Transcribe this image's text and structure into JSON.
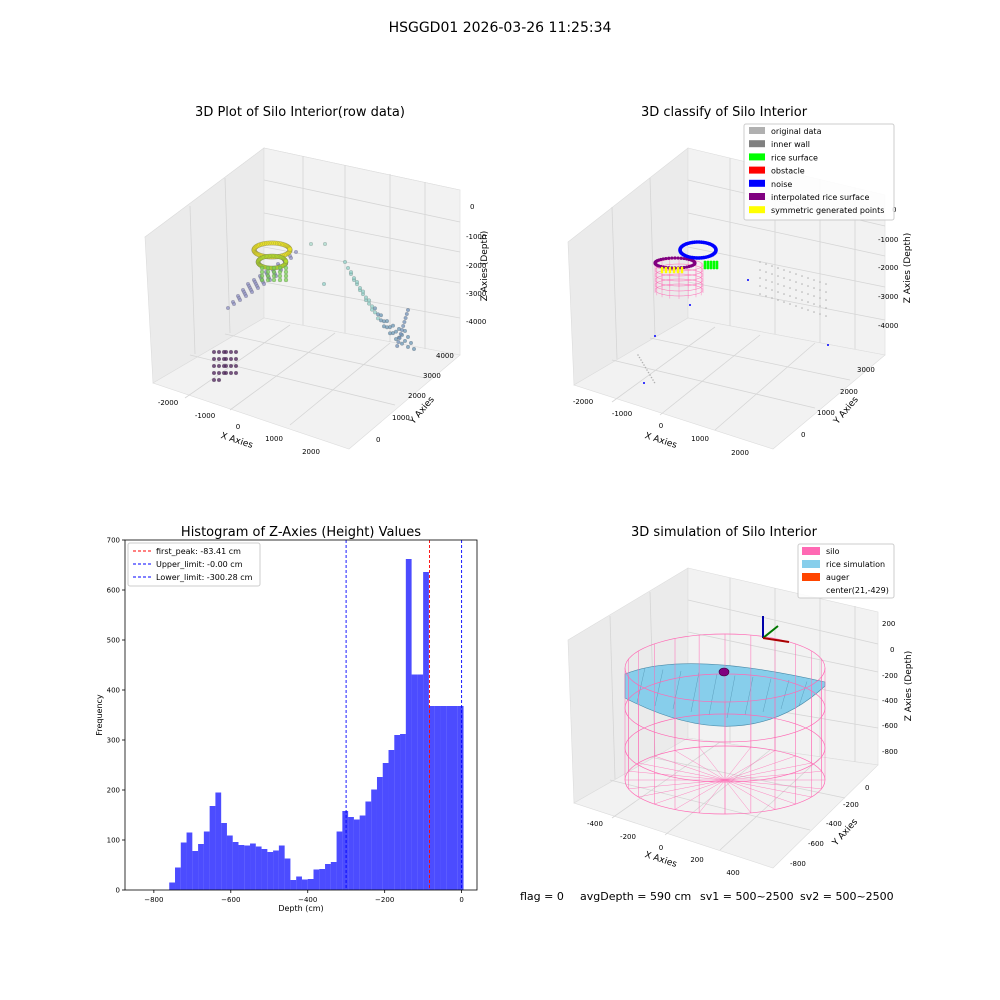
{
  "figure": {
    "suptitle": "HSGGD01 2026-03-26 11:25:34",
    "footer": {
      "flag": "flag = 0",
      "avg_depth": "avgDepth = 590 cm",
      "sv1": "sv1 = 500~2500",
      "sv2": "sv2 = 500~2500"
    }
  },
  "chart_data": [
    {
      "type": "scatter",
      "title": "3D Plot of Silo Interior(row data)",
      "xlabel": "X Axies",
      "ylabel": "Y Axies",
      "zlabel": "Z Axies (Depth)",
      "x_ticks": [
        "-2000",
        "-1000",
        "0",
        "1000",
        "2000"
      ],
      "y_ticks": [
        "0",
        "1000",
        "2000",
        "3000",
        "4000"
      ],
      "z_ticks": [
        "0",
        "-1000",
        "-2000",
        "-3000",
        "-4000"
      ],
      "colormap": "viridis"
    },
    {
      "type": "scatter",
      "title": "3D classify of Silo Interior",
      "xlabel": "X Axies",
      "ylabel": "Y Axies",
      "zlabel": "Z Axies (Depth)",
      "x_ticks": [
        "-2000",
        "-1000",
        "0",
        "1000",
        "2000"
      ],
      "y_ticks": [
        "0",
        "1000",
        "2000",
        "3000"
      ],
      "z_ticks": [
        "0",
        "-1000",
        "-2000",
        "-3000",
        "-4000"
      ],
      "legend_position": "top-right",
      "legend": [
        {
          "label": "original data",
          "color": "#b0b0b0"
        },
        {
          "label": "inner wall",
          "color": "#808080"
        },
        {
          "label": "rice surface",
          "color": "#00ff00"
        },
        {
          "label": "obstacle",
          "color": "#ff0000"
        },
        {
          "label": "noise",
          "color": "#0000ff"
        },
        {
          "label": "interpolated rice surface",
          "color": "#800080"
        },
        {
          "label": "symmetric generated points",
          "color": "#ffff00"
        }
      ]
    },
    {
      "type": "bar",
      "title": "Histogram of Z-Axies (Height) Values",
      "xlabel": "Depth (cm)",
      "ylabel": "Frequency",
      "xlim": [
        -875,
        40
      ],
      "ylim": [
        0,
        700
      ],
      "x_ticks": [
        -800,
        -600,
        -400,
        -200,
        0
      ],
      "y_ticks": [
        0,
        100,
        200,
        300,
        400,
        500,
        600,
        700
      ],
      "bar_color": "#0000ff",
      "bins_left": [
        -760,
        -745,
        -730,
        -715,
        -700,
        -685,
        -670,
        -655,
        -640,
        -625,
        -610,
        -595,
        -580,
        -565,
        -550,
        -535,
        -520,
        -505,
        -490,
        -475,
        -460,
        -445,
        -430,
        -415,
        -400,
        -385,
        -370,
        -355,
        -340,
        -325,
        -310,
        -295,
        -280,
        -265,
        -250,
        -235,
        -220,
        -205,
        -190,
        -175,
        -160,
        -145,
        -130,
        -115,
        -100,
        -85,
        -70,
        -55,
        -40,
        -25,
        -10
      ],
      "bin_width": 15,
      "values": [
        15,
        45,
        95,
        115,
        78,
        92,
        117,
        168,
        195,
        134,
        109,
        96,
        90,
        89,
        93,
        87,
        82,
        76,
        79,
        89,
        63,
        20,
        27,
        21,
        22,
        41,
        42,
        52,
        56,
        117,
        158,
        146,
        141,
        149,
        177,
        201,
        226,
        254,
        280,
        310,
        312,
        662,
        431,
        431,
        636,
        368,
        368,
        368,
        368,
        368,
        368
      ],
      "vlines": [
        {
          "x": -83.41,
          "color": "#ff0000"
        },
        {
          "x": -0.0,
          "color": "#0000ff"
        },
        {
          "x": -300.28,
          "color": "#0000ff"
        }
      ],
      "legend_position": "top-left",
      "legend": [
        {
          "label": "first_peak: -83.41 cm",
          "color": "#ff0000"
        },
        {
          "label": "Upper_limit: -0.00 cm",
          "color": "#0000ff"
        },
        {
          "label": "Lower_limit: -300.28 cm",
          "color": "#0000ff"
        }
      ]
    },
    {
      "type": "scatter",
      "title": "3D simulation of Silo Interior",
      "xlabel": "X Axies",
      "ylabel": "Y Axies",
      "zlabel": "Z Axies (Depth)",
      "x_ticks": [
        "-400",
        "-200",
        "0",
        "200",
        "400"
      ],
      "y_ticks": [
        "-800",
        "-600",
        "-400",
        "-200",
        "0"
      ],
      "z_ticks": [
        "200",
        "0",
        "-200",
        "-400",
        "-600",
        "-800"
      ],
      "legend_position": "top-right",
      "legend": [
        {
          "label": "silo",
          "color": "#ff69b4",
          "marker": "patch"
        },
        {
          "label": "rice simulation",
          "color": "#87ceeb",
          "marker": "patch"
        },
        {
          "label": "auger",
          "color": "#ff4500",
          "marker": "patch"
        },
        {
          "label": "center(21,-429)",
          "color": "",
          "marker": "none"
        }
      ]
    }
  ]
}
